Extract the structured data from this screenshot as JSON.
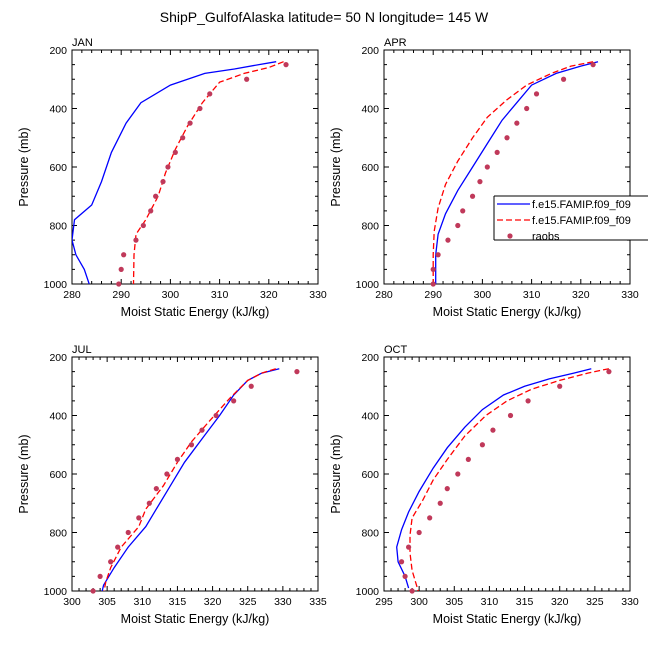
{
  "figure": {
    "title": "ShipP_GulfofAlaska  latitude= 50 N longitude= 145 W"
  },
  "legend": {
    "entries": [
      {
        "label": "f.e15.FAMIP.f09_f09",
        "style": "solid",
        "color": "#0000ff"
      },
      {
        "label": "f.e15.FAMIP.f09_f09",
        "style": "dashed",
        "color": "#ff0000"
      },
      {
        "label": "raobs",
        "style": "marker",
        "color": "#c0395a"
      }
    ]
  },
  "colors": {
    "model1": "#0000ff",
    "model2": "#ff0000",
    "raobs": "#c0395a"
  },
  "chart_data": [
    {
      "type": "line",
      "panel_label": "JAN",
      "xlabel": "Moist Static Energy (kJ/kg)",
      "ylabel": "Pressure (mb)",
      "xlim": [
        280,
        330
      ],
      "ylim": [
        1000,
        200
      ],
      "y_inverted": true,
      "xticks": [
        280,
        290,
        300,
        310,
        320,
        330
      ],
      "yticks": [
        200,
        400,
        600,
        800,
        1000
      ],
      "series": [
        {
          "name": "f.e15.FAMIP.f09_f09",
          "points": [
            [
              321.5,
              240
            ],
            [
              318,
              250
            ],
            [
              313,
              265
            ],
            [
              307,
              280
            ],
            [
              300,
              320
            ],
            [
              294,
              380
            ],
            [
              291,
              450
            ],
            [
              288,
              550
            ],
            [
              286,
              650
            ],
            [
              284,
              730
            ],
            [
              280.5,
              780
            ],
            [
              280,
              850
            ],
            [
              280.8,
              900
            ],
            [
              282.5,
              950
            ],
            [
              283.5,
              1000
            ]
          ]
        },
        {
          "name": "f.e15.FAMIP.f09_f09",
          "points": [
            [
              323,
              240
            ],
            [
              320,
              260
            ],
            [
              315,
              280
            ],
            [
              310,
              310
            ],
            [
              306.5,
              380
            ],
            [
              303.5,
              460
            ],
            [
              301,
              540
            ],
            [
              299,
              620
            ],
            [
              297.5,
              700
            ],
            [
              295,
              780
            ],
            [
              293,
              830
            ],
            [
              292.6,
              900
            ],
            [
              292.5,
              1000
            ]
          ]
        },
        {
          "name": "raobs",
          "points": [
            [
              323.5,
              250
            ],
            [
              315.5,
              300
            ],
            [
              308,
              350
            ],
            [
              306,
              400
            ],
            [
              304,
              450
            ],
            [
              302.5,
              500
            ],
            [
              301,
              550
            ],
            [
              299.5,
              600
            ],
            [
              298.5,
              650
            ],
            [
              297,
              700
            ],
            [
              296,
              750
            ],
            [
              294.5,
              800
            ],
            [
              293,
              850
            ],
            [
              290.5,
              900
            ],
            [
              290,
              950
            ],
            [
              289.5,
              1000
            ]
          ]
        }
      ]
    },
    {
      "type": "line",
      "panel_label": "APR",
      "xlabel": "Moist Static Energy (kJ/kg)",
      "ylabel": "Pressure (mb)",
      "xlim": [
        280,
        330
      ],
      "ylim": [
        1000,
        200
      ],
      "y_inverted": true,
      "xticks": [
        280,
        290,
        300,
        310,
        320,
        330
      ],
      "yticks": [
        200,
        400,
        600,
        800,
        1000
      ],
      "series": [
        {
          "name": "f.e15.FAMIP.f09_f09",
          "points": [
            [
              323.5,
              240
            ],
            [
              320,
              255
            ],
            [
              315,
              280
            ],
            [
              310,
              320
            ],
            [
              307,
              380
            ],
            [
              304,
              440
            ],
            [
              301,
              520
            ],
            [
              298,
              600
            ],
            [
              295,
              680
            ],
            [
              292.5,
              760
            ],
            [
              291,
              830
            ],
            [
              290.5,
              900
            ],
            [
              290.5,
              1000
            ]
          ]
        },
        {
          "name": "f.e15.FAMIP.f09_f09",
          "points": [
            [
              322.5,
              240
            ],
            [
              318,
              255
            ],
            [
              314,
              280
            ],
            [
              309,
              320
            ],
            [
              305,
              370
            ],
            [
              301,
              430
            ],
            [
              298,
              500
            ],
            [
              295,
              580
            ],
            [
              292.5,
              660
            ],
            [
              291,
              740
            ],
            [
              290.2,
              820
            ],
            [
              290,
              900
            ],
            [
              290,
              1000
            ]
          ]
        },
        {
          "name": "raobs",
          "points": [
            [
              322.5,
              250
            ],
            [
              316.5,
              300
            ],
            [
              311,
              350
            ],
            [
              309,
              400
            ],
            [
              307,
              450
            ],
            [
              305,
              500
            ],
            [
              303,
              550
            ],
            [
              301,
              600
            ],
            [
              299.5,
              650
            ],
            [
              298,
              700
            ],
            [
              296,
              750
            ],
            [
              295,
              800
            ],
            [
              293,
              850
            ],
            [
              291,
              900
            ],
            [
              290,
              950
            ],
            [
              290,
              1000
            ]
          ]
        }
      ]
    },
    {
      "type": "line",
      "panel_label": "JUL",
      "xlabel": "Moist Static Energy (kJ/kg)",
      "ylabel": "Pressure (mb)",
      "xlim": [
        300,
        335
      ],
      "ylim": [
        1000,
        200
      ],
      "y_inverted": true,
      "xticks": [
        300,
        305,
        310,
        315,
        320,
        325,
        330,
        335
      ],
      "yticks": [
        200,
        400,
        600,
        800,
        1000
      ],
      "series": [
        {
          "name": "f.e15.FAMIP.f09_f09",
          "points": [
            [
              329.5,
              240
            ],
            [
              327,
              255
            ],
            [
              325,
              280
            ],
            [
              323,
              330
            ],
            [
              321,
              400
            ],
            [
              318.5,
              480
            ],
            [
              316,
              560
            ],
            [
              314,
              640
            ],
            [
              312,
              720
            ],
            [
              310.5,
              780
            ],
            [
              308,
              850
            ],
            [
              306,
              920
            ],
            [
              304.5,
              980
            ],
            [
              304.2,
              1010
            ]
          ]
        },
        {
          "name": "f.e15.FAMIP.f09_f09",
          "points": [
            [
              329,
              240
            ],
            [
              327,
              255
            ],
            [
              325,
              280
            ],
            [
              322.5,
              340
            ],
            [
              319.5,
              420
            ],
            [
              317,
              490
            ],
            [
              315,
              560
            ],
            [
              313,
              640
            ],
            [
              310.5,
              720
            ],
            [
              309.5,
              780
            ],
            [
              307,
              850
            ],
            [
              305.5,
              920
            ],
            [
              304.8,
              970
            ],
            [
              304.5,
              1010
            ]
          ]
        },
        {
          "name": "raobs",
          "points": [
            [
              332,
              250
            ],
            [
              325.5,
              300
            ],
            [
              323,
              350
            ],
            [
              320.5,
              400
            ],
            [
              318.5,
              450
            ],
            [
              317,
              500
            ],
            [
              315,
              550
            ],
            [
              313.5,
              600
            ],
            [
              312,
              650
            ],
            [
              311,
              700
            ],
            [
              309.5,
              750
            ],
            [
              308,
              800
            ],
            [
              306.5,
              850
            ],
            [
              305.5,
              900
            ],
            [
              304,
              950
            ],
            [
              303,
              1000
            ]
          ]
        }
      ]
    },
    {
      "type": "line",
      "panel_label": "OCT",
      "xlabel": "Moist Static Energy (kJ/kg)",
      "ylabel": "Pressure (mb)",
      "xlim": [
        295,
        330
      ],
      "ylim": [
        1000,
        200
      ],
      "y_inverted": true,
      "xticks": [
        295,
        300,
        305,
        310,
        315,
        320,
        325,
        330
      ],
      "yticks": [
        200,
        400,
        600,
        800,
        1000
      ],
      "series": [
        {
          "name": "f.e15.FAMIP.f09_f09",
          "points": [
            [
              324.5,
              240
            ],
            [
              322,
              255
            ],
            [
              318.5,
              275
            ],
            [
              315,
              300
            ],
            [
              312,
              330
            ],
            [
              309,
              380
            ],
            [
              306.5,
              440
            ],
            [
              304,
              510
            ],
            [
              302,
              580
            ],
            [
              300,
              660
            ],
            [
              298.5,
              730
            ],
            [
              297.5,
              790
            ],
            [
              296.8,
              850
            ],
            [
              297,
              900
            ],
            [
              298,
              950
            ],
            [
              298.5,
              990
            ]
          ]
        },
        {
          "name": "f.e15.FAMIP.f09_f09",
          "points": [
            [
              327,
              240
            ],
            [
              324,
              255
            ],
            [
              320,
              280
            ],
            [
              316,
              310
            ],
            [
              312.5,
              350
            ],
            [
              309.5,
              400
            ],
            [
              306.5,
              470
            ],
            [
              304,
              550
            ],
            [
              302,
              620
            ],
            [
              300.5,
              690
            ],
            [
              299,
              750
            ],
            [
              298.7,
              810
            ],
            [
              298.7,
              870
            ],
            [
              299,
              930
            ],
            [
              299.5,
              970
            ],
            [
              300,
              1010
            ]
          ]
        },
        {
          "name": "raobs",
          "points": [
            [
              327,
              250
            ],
            [
              320,
              300
            ],
            [
              315.5,
              350
            ],
            [
              313,
              400
            ],
            [
              310.5,
              450
            ],
            [
              309,
              500
            ],
            [
              307,
              550
            ],
            [
              305.5,
              600
            ],
            [
              304,
              650
            ],
            [
              303,
              700
            ],
            [
              301.5,
              750
            ],
            [
              300,
              800
            ],
            [
              298.5,
              850
            ],
            [
              297.5,
              900
            ],
            [
              298,
              950
            ],
            [
              299,
              1000
            ]
          ]
        }
      ]
    }
  ]
}
